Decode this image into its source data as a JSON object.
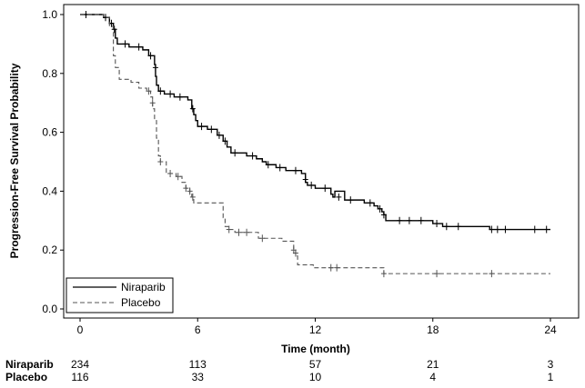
{
  "chart_data": {
    "type": "line",
    "subtype": "kaplan-meier",
    "xlabel": "Time (month)",
    "ylabel": "Progression-Free Survival Probability",
    "xlim": [
      0,
      24
    ],
    "ylim": [
      0,
      1.0
    ],
    "xticks": [
      "0",
      "6",
      "12",
      "18",
      "24"
    ],
    "yticks": [
      "0.0",
      "0.2",
      "0.4",
      "0.6",
      "0.8",
      "1.0"
    ],
    "grid": false,
    "legend_position": "bottom-left",
    "series": [
      {
        "name": "Niraparib",
        "color": "#000000",
        "dash": "solid",
        "steps": [
          [
            0,
            1.0
          ],
          [
            1.2,
            0.99
          ],
          [
            1.5,
            0.97
          ],
          [
            1.7,
            0.95
          ],
          [
            1.8,
            0.92
          ],
          [
            1.9,
            0.9
          ],
          [
            2.5,
            0.89
          ],
          [
            3.2,
            0.88
          ],
          [
            3.5,
            0.86
          ],
          [
            3.8,
            0.83
          ],
          [
            3.85,
            0.79
          ],
          [
            3.9,
            0.76
          ],
          [
            4.0,
            0.74
          ],
          [
            4.3,
            0.73
          ],
          [
            4.8,
            0.72
          ],
          [
            5.5,
            0.71
          ],
          [
            5.7,
            0.68
          ],
          [
            5.8,
            0.66
          ],
          [
            5.9,
            0.64
          ],
          [
            6.0,
            0.62
          ],
          [
            6.5,
            0.61
          ],
          [
            7.0,
            0.59
          ],
          [
            7.3,
            0.57
          ],
          [
            7.5,
            0.55
          ],
          [
            7.7,
            0.53
          ],
          [
            8.5,
            0.52
          ],
          [
            9.0,
            0.51
          ],
          [
            9.3,
            0.5
          ],
          [
            9.5,
            0.49
          ],
          [
            10.0,
            0.48
          ],
          [
            10.5,
            0.47
          ],
          [
            11.3,
            0.46
          ],
          [
            11.5,
            0.43
          ],
          [
            11.6,
            0.42
          ],
          [
            12.0,
            0.41
          ],
          [
            13.0,
            0.4
          ],
          [
            12.8,
            0.39
          ],
          [
            12.9,
            0.38
          ],
          [
            13.5,
            0.37
          ],
          [
            14.5,
            0.36
          ],
          [
            15.0,
            0.35
          ],
          [
            15.2,
            0.34
          ],
          [
            15.4,
            0.33
          ],
          [
            15.5,
            0.32
          ],
          [
            15.6,
            0.3
          ],
          [
            18.0,
            0.29
          ],
          [
            18.5,
            0.28
          ],
          [
            20.9,
            0.27
          ]
        ],
        "end": 24,
        "censors": [
          [
            0.3,
            1.0
          ],
          [
            1.3,
            0.99
          ],
          [
            1.6,
            0.97
          ],
          [
            1.75,
            0.95
          ],
          [
            2.3,
            0.9
          ],
          [
            3.0,
            0.89
          ],
          [
            3.6,
            0.86
          ],
          [
            3.85,
            0.82
          ],
          [
            4.1,
            0.74
          ],
          [
            4.6,
            0.73
          ],
          [
            5.1,
            0.72
          ],
          [
            5.75,
            0.68
          ],
          [
            6.2,
            0.62
          ],
          [
            6.7,
            0.61
          ],
          [
            7.1,
            0.59
          ],
          [
            7.4,
            0.57
          ],
          [
            7.9,
            0.53
          ],
          [
            8.8,
            0.52
          ],
          [
            9.6,
            0.49
          ],
          [
            10.2,
            0.48
          ],
          [
            11.0,
            0.47
          ],
          [
            11.5,
            0.44
          ],
          [
            11.8,
            0.42
          ],
          [
            12.5,
            0.41
          ],
          [
            13.2,
            0.38
          ],
          [
            13.8,
            0.37
          ],
          [
            14.8,
            0.36
          ],
          [
            15.3,
            0.34
          ],
          [
            15.5,
            0.32
          ],
          [
            16.3,
            0.3
          ],
          [
            16.8,
            0.3
          ],
          [
            17.4,
            0.3
          ],
          [
            18.2,
            0.29
          ],
          [
            18.7,
            0.28
          ],
          [
            19.3,
            0.28
          ],
          [
            21.0,
            0.27
          ],
          [
            21.3,
            0.27
          ],
          [
            21.7,
            0.27
          ],
          [
            23.2,
            0.27
          ],
          [
            23.8,
            0.27
          ]
        ]
      },
      {
        "name": "Placebo",
        "color": "#555555",
        "dash": "dashed",
        "steps": [
          [
            0,
            1.0
          ],
          [
            1.2,
            0.99
          ],
          [
            1.5,
            0.96
          ],
          [
            1.7,
            0.86
          ],
          [
            1.8,
            0.82
          ],
          [
            2.0,
            0.78
          ],
          [
            2.6,
            0.77
          ],
          [
            3.0,
            0.75
          ],
          [
            3.4,
            0.74
          ],
          [
            3.6,
            0.72
          ],
          [
            3.7,
            0.68
          ],
          [
            3.8,
            0.64
          ],
          [
            3.9,
            0.58
          ],
          [
            4.0,
            0.52
          ],
          [
            4.1,
            0.5
          ],
          [
            4.4,
            0.46
          ],
          [
            4.9,
            0.45
          ],
          [
            5.2,
            0.43
          ],
          [
            5.4,
            0.41
          ],
          [
            5.6,
            0.39
          ],
          [
            5.7,
            0.38
          ],
          [
            5.8,
            0.36
          ],
          [
            7.3,
            0.31
          ],
          [
            7.4,
            0.28
          ],
          [
            7.6,
            0.27
          ],
          [
            7.9,
            0.26
          ],
          [
            9.1,
            0.24
          ],
          [
            10.3,
            0.23
          ],
          [
            10.9,
            0.2
          ],
          [
            11.0,
            0.18
          ],
          [
            11.1,
            0.15
          ],
          [
            11.9,
            0.14
          ],
          [
            15.5,
            0.12
          ]
        ],
        "end": 24,
        "censors": [
          [
            3.5,
            0.74
          ],
          [
            3.7,
            0.7
          ],
          [
            4.1,
            0.5
          ],
          [
            4.6,
            0.46
          ],
          [
            5.0,
            0.45
          ],
          [
            5.4,
            0.41
          ],
          [
            5.6,
            0.4
          ],
          [
            5.75,
            0.38
          ],
          [
            7.6,
            0.27
          ],
          [
            8.1,
            0.26
          ],
          [
            8.5,
            0.26
          ],
          [
            9.3,
            0.24
          ],
          [
            10.9,
            0.2
          ],
          [
            11.0,
            0.19
          ],
          [
            12.8,
            0.14
          ],
          [
            13.1,
            0.14
          ],
          [
            15.5,
            0.12
          ],
          [
            18.2,
            0.12
          ],
          [
            21.0,
            0.12
          ]
        ]
      }
    ],
    "at_risk": {
      "times": [
        0,
        6,
        12,
        18,
        24
      ],
      "rows": [
        {
          "label": "Niraparib",
          "values": [
            "234",
            "113",
            "57",
            "21",
            "3"
          ]
        },
        {
          "label": "Placebo",
          "values": [
            "116",
            "33",
            "10",
            "4",
            "1"
          ]
        }
      ]
    }
  }
}
